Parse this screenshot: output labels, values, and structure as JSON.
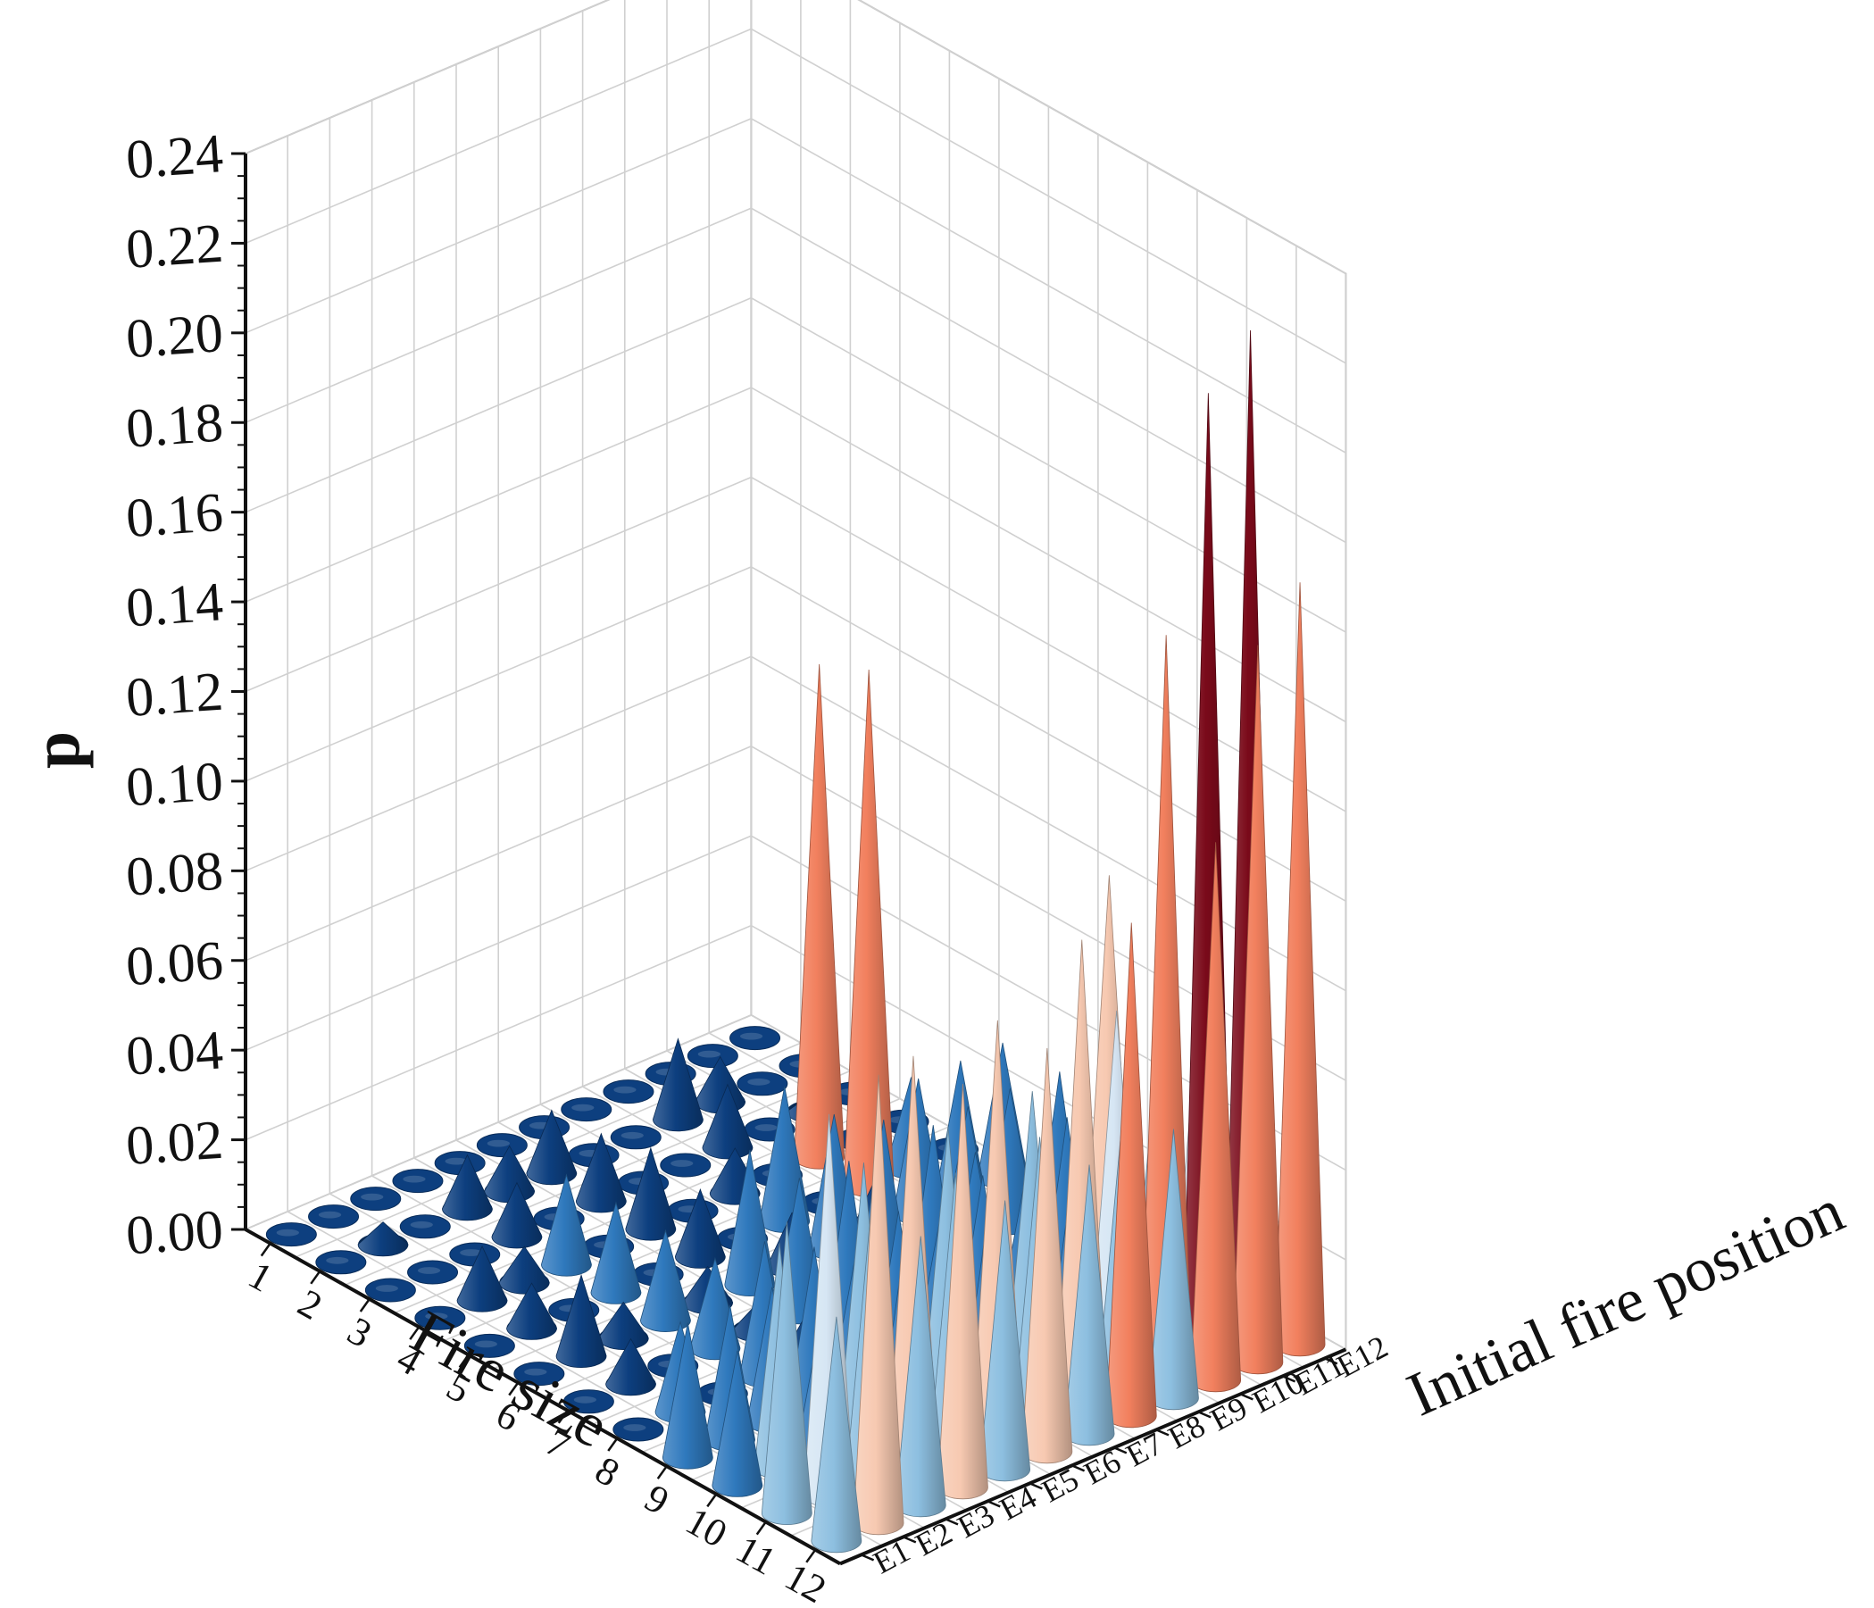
{
  "chart_data": {
    "type": "3d-cone",
    "title": "",
    "zlabel": "p",
    "xlabel": "Fire size",
    "ylabel": "Initial fire position",
    "zlim": [
      0,
      0.24
    ],
    "zticks": [
      "0.00",
      "0.02",
      "0.04",
      "0.06",
      "0.08",
      "0.10",
      "0.12",
      "0.14",
      "0.16",
      "0.18",
      "0.20",
      "0.22",
      "0.24"
    ],
    "x_categories": [
      "1",
      "2",
      "3",
      "4",
      "5",
      "6",
      "7",
      "8",
      "9",
      "10",
      "11",
      "12"
    ],
    "y_categories": [
      "E1",
      "E2",
      "E3",
      "E4",
      "E5",
      "E6",
      "E7",
      "E8",
      "E9",
      "E10",
      "E11",
      "E12"
    ],
    "grid": true,
    "colors": {
      "level_0": "#0d3f7f",
      "level_1": "#2f79bd",
      "level_2": "#8dbfe0",
      "level_3": "#d6e6f4",
      "level_4": "#f7c9b1",
      "level_5": "#f2805e",
      "level_6": "#7a0a1a"
    },
    "color_thresholds": [
      0.02,
      0.05,
      0.07,
      0.09,
      0.11,
      0.2
    ],
    "values": [
      [
        0.0,
        0.0,
        0.0,
        0.0,
        0.0,
        0.0,
        0.0,
        0.0,
        0.0,
        0.0,
        0.0,
        0.0
      ],
      [
        0.0,
        0.005,
        0.0,
        0.012,
        0.01,
        0.014,
        0.0,
        0.0,
        0.018,
        0.01,
        0.0,
        0.0
      ],
      [
        0.0,
        0.0,
        0.0,
        0.012,
        0.0,
        0.015,
        0.0,
        0.0,
        0.014,
        0.0,
        0.004,
        0.0
      ],
      [
        0.0,
        0.012,
        0.008,
        0.02,
        0.0,
        0.018,
        0.0,
        0.01,
        0.0,
        0.11,
        0.0,
        0.0
      ],
      [
        0.0,
        0.01,
        0.0,
        0.02,
        0.0,
        0.015,
        0.0,
        0.03,
        0.0,
        0.115,
        0.02,
        0.0
      ],
      [
        0.0,
        0.018,
        0.008,
        0.02,
        0.008,
        0.03,
        0.012,
        0.03,
        0.012,
        0.03,
        0.03,
        0.03
      ],
      [
        0.0,
        0.01,
        0.0,
        0.02,
        0.006,
        0.03,
        0.012,
        0.035,
        0.012,
        0.03,
        0.03,
        0.0
      ],
      [
        0.0,
        0.02,
        0.0,
        0.03,
        0.01,
        0.04,
        0.006,
        0.04,
        0.03,
        0.003,
        0.04,
        0.0
      ],
      [
        0.03,
        0.03,
        0.03,
        0.035,
        0.03,
        0.035,
        0.03,
        0.035,
        0.03,
        0.04,
        0.09,
        0.0
      ],
      [
        0.03,
        0.05,
        0.03,
        0.06,
        0.04,
        0.06,
        0.04,
        0.06,
        0.04,
        0.07,
        0.06,
        0.07
      ],
      [
        0.065,
        0.085,
        0.06,
        0.09,
        0.06,
        0.09,
        0.06,
        0.1,
        0.06,
        0.16,
        0.21,
        0.22
      ],
      [
        0.05,
        0.1,
        0.06,
        0.09,
        0.06,
        0.09,
        0.06,
        0.11,
        0.06,
        0.12,
        0.16,
        0.17
      ]
    ]
  }
}
